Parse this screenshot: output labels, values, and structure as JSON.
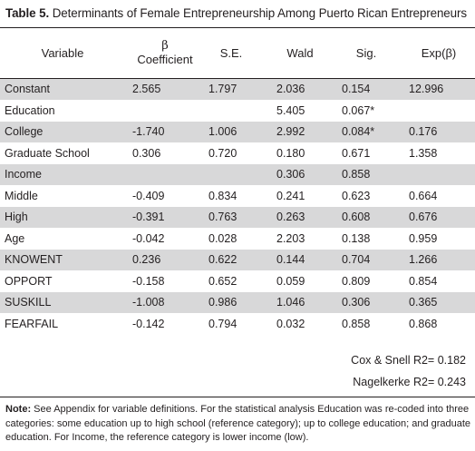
{
  "table": {
    "label": "Table 5.",
    "title": "Determinants of Female Entrepreneurship Among Puerto Rican Entrepreneurs",
    "headers": {
      "variable": "Variable",
      "beta_symbol": "β",
      "coefficient": "Coefficient",
      "se": "S.E.",
      "wald": "Wald",
      "sig": "Sig.",
      "exp": "Exp(β)"
    },
    "rows": [
      {
        "variable": "Constant",
        "coef": "2.565",
        "se": "1.797",
        "wald": "2.036",
        "sig": "0.154",
        "exp": "12.996",
        "shaded": true
      },
      {
        "variable": "Education",
        "coef": "",
        "se": "",
        "wald": "5.405",
        "sig": "0.067*",
        "exp": "",
        "shaded": false
      },
      {
        "variable": "College",
        "coef": "-1.740",
        "se": "1.006",
        "wald": "2.992",
        "sig": "0.084*",
        "exp": "0.176",
        "shaded": true
      },
      {
        "variable": "Graduate School",
        "coef": "0.306",
        "se": "0.720",
        "wald": "0.180",
        "sig": "0.671",
        "exp": "1.358",
        "shaded": false
      },
      {
        "variable": "Income",
        "coef": "",
        "se": "",
        "wald": "0.306",
        "sig": "0.858",
        "exp": "",
        "shaded": true
      },
      {
        "variable": "Middle",
        "coef": "-0.409",
        "se": "0.834",
        "wald": "0.241",
        "sig": "0.623",
        "exp": "0.664",
        "shaded": false
      },
      {
        "variable": "High",
        "coef": "-0.391",
        "se": "0.763",
        "wald": "0.263",
        "sig": "0.608",
        "exp": "0.676",
        "shaded": true
      },
      {
        "variable": "Age",
        "coef": "-0.042",
        "se": "0.028",
        "wald": "2.203",
        "sig": "0.138",
        "exp": "0.959",
        "shaded": false
      },
      {
        "variable": "KNOWENT",
        "coef": "0.236",
        "se": "0.622",
        "wald": "0.144",
        "sig": "0.704",
        "exp": "1.266",
        "shaded": true
      },
      {
        "variable": "OPPORT",
        "coef": "-0.158",
        "se": "0.652",
        "wald": "0.059",
        "sig": "0.809",
        "exp": "0.854",
        "shaded": false
      },
      {
        "variable": "SUSKILL",
        "coef": "-1.008",
        "se": "0.986",
        "wald": "1.046",
        "sig": "0.306",
        "exp": "0.365",
        "shaded": true
      },
      {
        "variable": "FEARFAIL",
        "coef": "-0.142",
        "se": "0.794",
        "wald": "0.032",
        "sig": "0.858",
        "exp": "0.868",
        "shaded": false
      }
    ],
    "stats": {
      "cox_snell": "Cox & Snell R2= 0.182",
      "nagelkerke": "Nagelkerke R2= 0.243"
    },
    "note": {
      "label": "Note:",
      "text": "See Appendix for variable definitions. For the statistical analysis Education was re-coded into three categories: some education up to high school (reference category); up to college education; and graduate education. For Income, the reference category is lower income (low)."
    }
  }
}
